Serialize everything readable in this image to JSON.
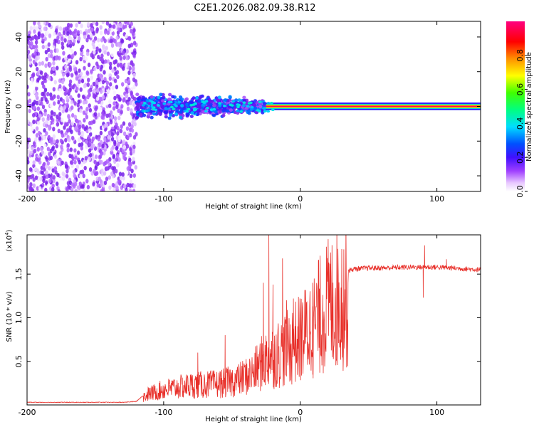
{
  "figure_title": "C2E1.2026.082.09.38.R12",
  "colors": {
    "snr_line": "#e8302a",
    "colormap": [
      "#ffffff",
      "#b060ff",
      "#7a1ee8",
      "#3a10ff",
      "#0050ff",
      "#00d8ff",
      "#00ff90",
      "#50ff00",
      "#ffff00",
      "#ff9000",
      "#ff0000",
      "#ff0080"
    ]
  },
  "chart_data": [
    {
      "type": "heatmap",
      "title": "C2E1.2026.082.09.38.R12",
      "xlabel": "Height of straight line (km)",
      "ylabel": "Frequency (Hz)",
      "xlim": [
        -200,
        132
      ],
      "ylim": [
        -49,
        49
      ],
      "xticks": [
        -200,
        -100,
        0,
        100
      ],
      "xtick_labels": [
        "-200",
        "-100",
        "0",
        "100"
      ],
      "yticks": [
        -40,
        -20,
        0,
        20,
        40
      ],
      "ytick_labels": [
        "-40",
        "-20",
        "0",
        "20",
        "40"
      ],
      "regions": [
        {
          "x_range": [
            -200,
            -120
          ],
          "description": "broadband noise",
          "freq_spread_hz": 49,
          "amplitude_range": [
            0.0,
            0.2
          ]
        },
        {
          "x_range": [
            -120,
            -25
          ],
          "description": "scattered signal",
          "freq_spread_hz": 10,
          "amplitude_range": [
            0.1,
            0.45
          ]
        },
        {
          "x_range": [
            -25,
            132
          ],
          "description": "narrow carrier line at 0 Hz",
          "freq_spread_hz": 2,
          "amplitude_range": [
            0.7,
            1.0
          ]
        }
      ],
      "colorbar": {
        "label": "Normalized spectral amplitude",
        "range": [
          0.0,
          1.0
        ],
        "ticks": [
          0.0,
          0.2,
          0.4,
          0.6,
          0.8
        ],
        "tick_labels": [
          "0.0",
          "0.2",
          "0.4",
          "0.6",
          "0.8"
        ]
      }
    },
    {
      "type": "line",
      "xlabel": "Height of straight line (km)",
      "ylabel": "SNR (10 * v/v)",
      "y_multiplier_label": "(x10",
      "y_multiplier_exp": "4",
      "y_multiplier_close": ")",
      "xlim": [
        -200,
        132
      ],
      "ylim": [
        0,
        1.95
      ],
      "xticks": [
        -200,
        -100,
        0,
        100
      ],
      "xtick_labels": [
        "-200",
        "-100",
        "0",
        "100"
      ],
      "yticks": [
        0.5,
        1.0,
        1.5
      ],
      "ytick_labels": [
        "0.5",
        "1.0",
        "1.5"
      ],
      "envelope": {
        "x": [
          -200,
          -130,
          -120,
          -112,
          -100,
          -80,
          -60,
          -45,
          -35,
          -28,
          -25,
          -20,
          -18,
          -10,
          0,
          5,
          10,
          15,
          20,
          30,
          40,
          50,
          60,
          80,
          100,
          132
        ],
        "y": [
          0.03,
          0.03,
          0.04,
          0.15,
          0.22,
          0.28,
          0.3,
          0.36,
          0.45,
          0.6,
          0.65,
          0.7,
          0.72,
          0.8,
          0.95,
          1.05,
          1.15,
          1.3,
          1.42,
          1.52,
          1.56,
          1.57,
          1.57,
          1.58,
          1.58,
          1.55
        ]
      },
      "spikes": [
        {
          "x": -23,
          "y": 1.95
        },
        {
          "x": -13,
          "y": 1.68
        },
        {
          "x": -27,
          "y": 1.4
        },
        {
          "x": -20,
          "y": 1.38
        },
        {
          "x": -10,
          "y": 1.2
        },
        {
          "x": -5,
          "y": 1.22
        },
        {
          "x": 9,
          "y": 1.4
        },
        {
          "x": -55,
          "y": 0.8
        },
        {
          "x": -75,
          "y": 0.6
        },
        {
          "x": 91,
          "y": 1.83
        },
        {
          "x": 90,
          "y": 1.23
        },
        {
          "x": 107,
          "y": 1.67
        }
      ]
    }
  ]
}
